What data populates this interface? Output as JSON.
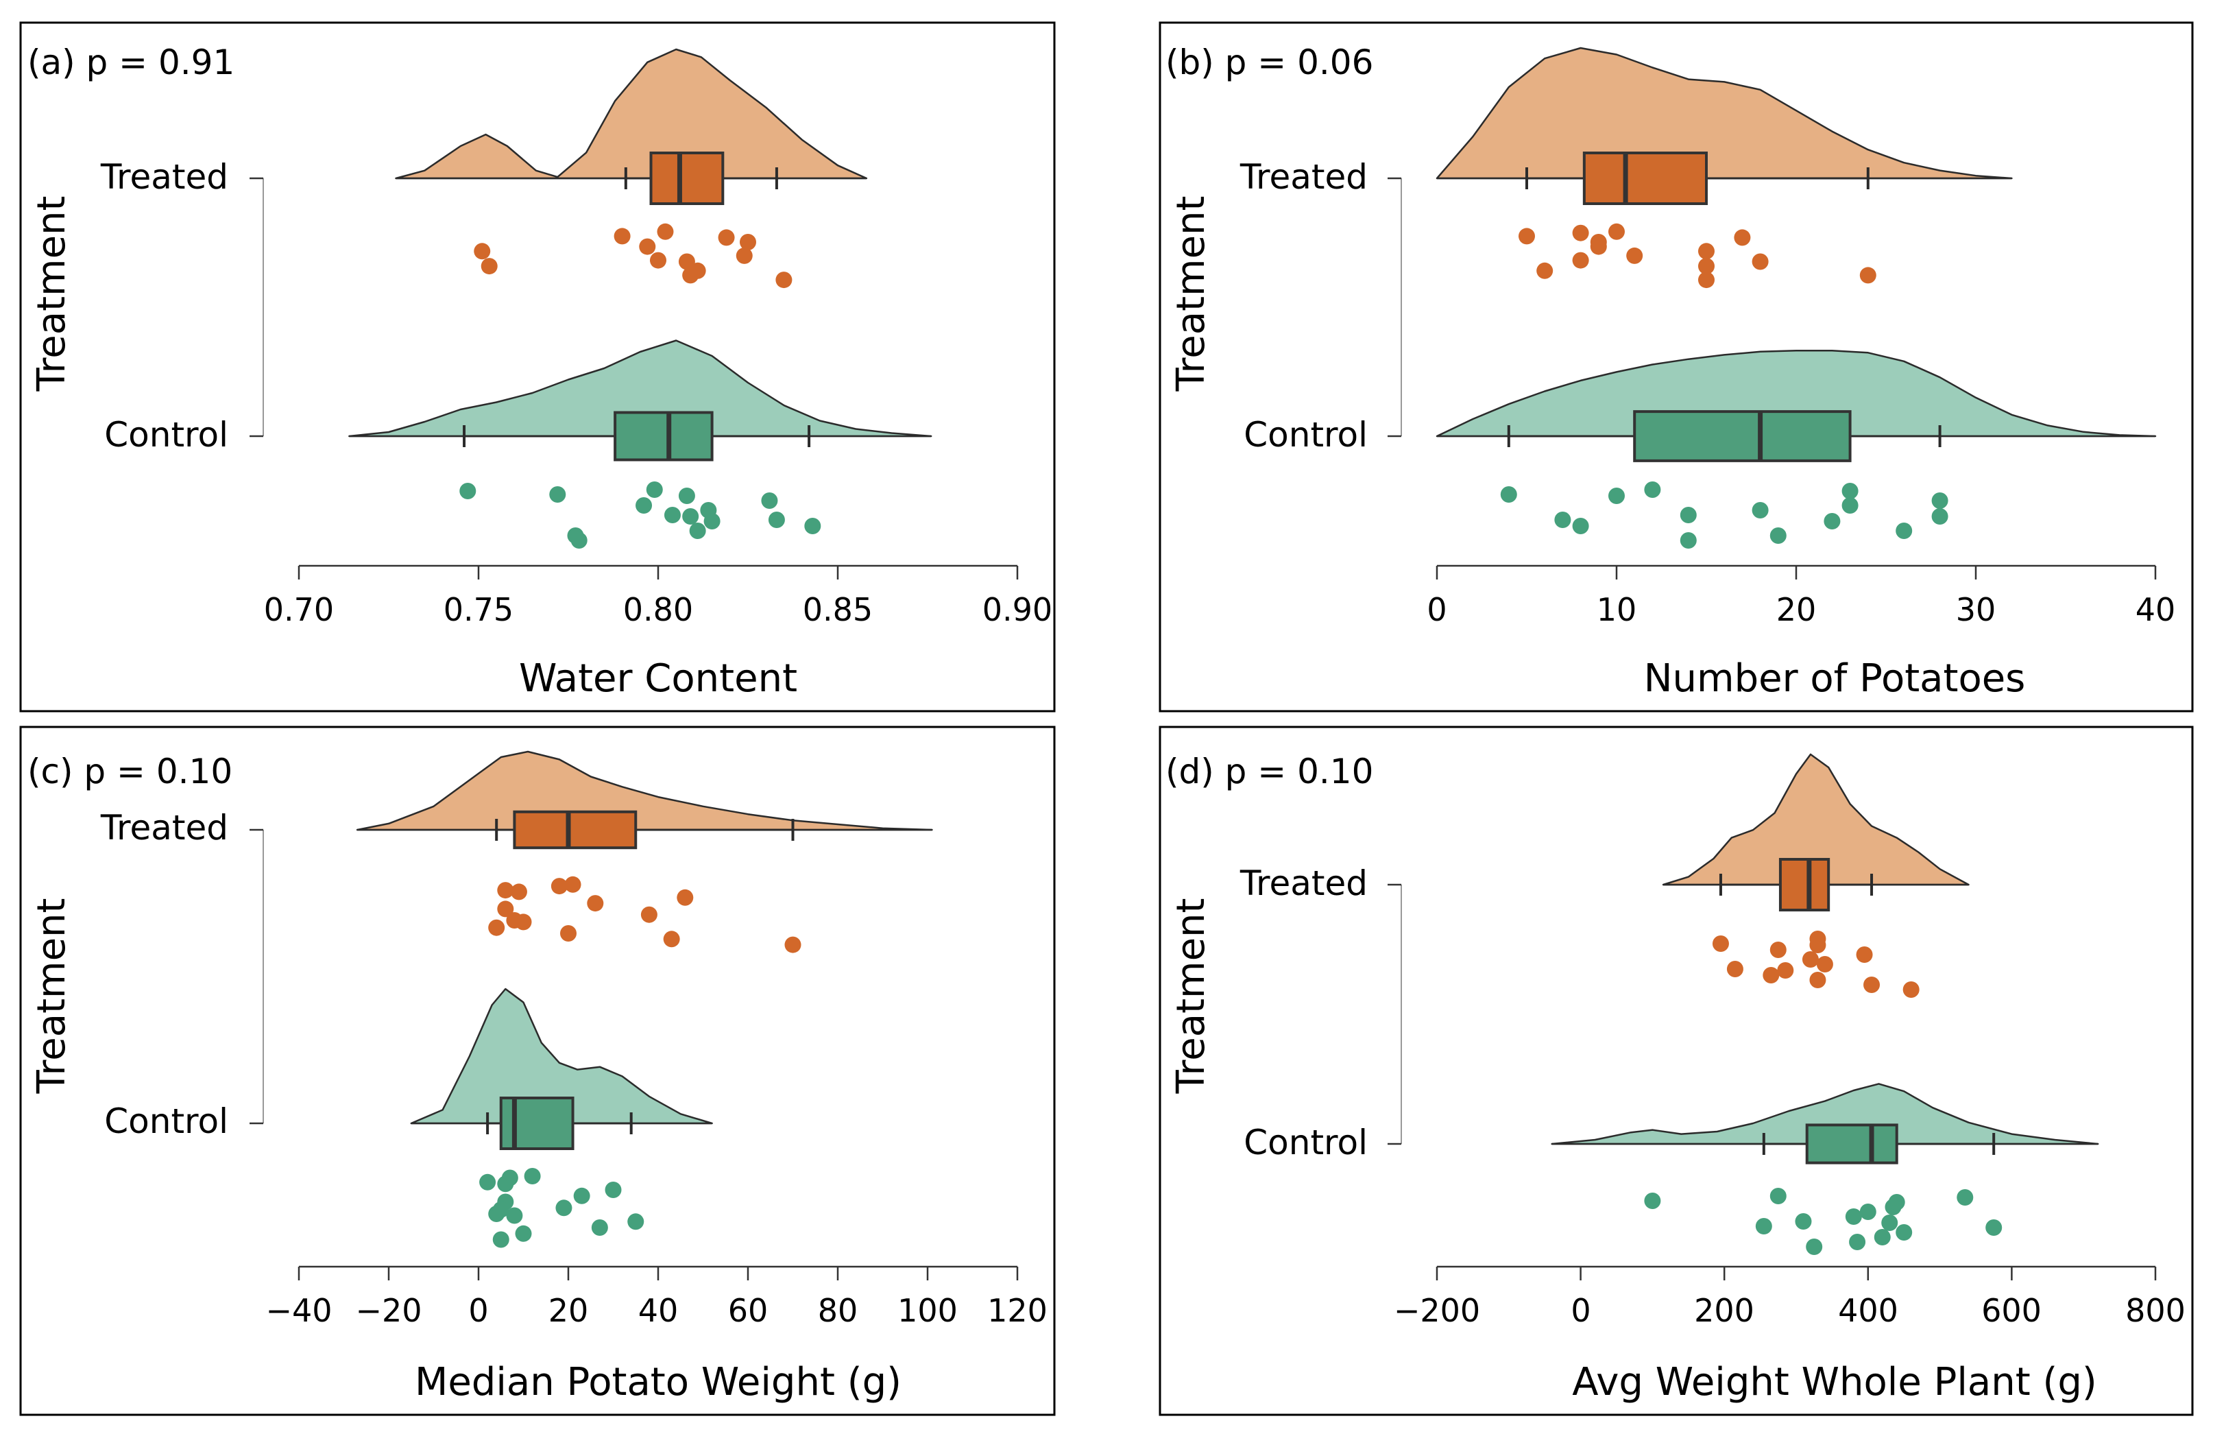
{
  "colors": {
    "treated_density": "#e6b084",
    "treated_box": "#cf6a2c",
    "treated_point": "#d2682a",
    "control_density": "#9ccdba",
    "control_box": "#4f9e7c",
    "control_point": "#45a07c",
    "outline": "#2b2b2b"
  },
  "chart_data": [
    {
      "type": "raincloud",
      "panel": "(a)",
      "title": "(a) p = 0.91",
      "xlabel": "Water Content",
      "ylabel": "Treatment",
      "xlim": [
        0.7,
        0.9
      ],
      "ticks": [
        0.7,
        0.75,
        0.8,
        0.85,
        0.9
      ],
      "tick_labels": [
        "0.70",
        "0.75",
        "0.80",
        "0.85",
        "0.90"
      ],
      "groups": [
        {
          "name": "Treated",
          "density": {
            "range": [
              0.727,
              0.858
            ],
            "points": [
              [
                0.727,
                0
              ],
              [
                0.735,
                0.06
              ],
              [
                0.745,
                0.25
              ],
              [
                0.752,
                0.34
              ],
              [
                0.758,
                0.25
              ],
              [
                0.766,
                0.06
              ],
              [
                0.772,
                0.01
              ],
              [
                0.78,
                0.2
              ],
              [
                0.788,
                0.6
              ],
              [
                0.797,
                0.9
              ],
              [
                0.805,
                1.0
              ],
              [
                0.812,
                0.94
              ],
              [
                0.82,
                0.76
              ],
              [
                0.83,
                0.55
              ],
              [
                0.84,
                0.3
              ],
              [
                0.85,
                0.1
              ],
              [
                0.858,
                0
              ]
            ]
          },
          "box": {
            "whisker_low": 0.791,
            "q1": 0.798,
            "median": 0.806,
            "q3": 0.818,
            "whisker_high": 0.833
          },
          "points": [
            0.79,
            0.8,
            0.802,
            0.824,
            0.835,
            0.751,
            0.809,
            0.797,
            0.811,
            0.825,
            0.753,
            0.819,
            0.808
          ]
        },
        {
          "name": "Control",
          "density": {
            "range": [
              0.714,
              0.876
            ],
            "points": [
              [
                0.714,
                0
              ],
              [
                0.725,
                0.04
              ],
              [
                0.735,
                0.14
              ],
              [
                0.745,
                0.26
              ],
              [
                0.755,
                0.33
              ],
              [
                0.765,
                0.42
              ],
              [
                0.775,
                0.55
              ],
              [
                0.785,
                0.66
              ],
              [
                0.795,
                0.82
              ],
              [
                0.805,
                0.93
              ],
              [
                0.815,
                0.78
              ],
              [
                0.825,
                0.52
              ],
              [
                0.835,
                0.3
              ],
              [
                0.845,
                0.15
              ],
              [
                0.855,
                0.07
              ],
              [
                0.865,
                0.03
              ],
              [
                0.876,
                0
              ]
            ]
          },
          "box": {
            "whisker_low": 0.746,
            "q1": 0.788,
            "median": 0.803,
            "q3": 0.815,
            "whisker_high": 0.842
          },
          "points": [
            0.772,
            0.833,
            0.799,
            0.804,
            0.778,
            0.814,
            0.777,
            0.796,
            0.811,
            0.831,
            0.843,
            0.808,
            0.815,
            0.747,
            0.809
          ]
        }
      ]
    },
    {
      "type": "raincloud",
      "panel": "(b)",
      "title": "(b) p = 0.06",
      "xlabel": "Number of Potatoes",
      "ylabel": "Treatment",
      "xlim": [
        0,
        40
      ],
      "ticks": [
        0,
        10,
        20,
        30,
        40
      ],
      "tick_labels": [
        "0",
        "10",
        "20",
        "30",
        "40"
      ],
      "groups": [
        {
          "name": "Treated",
          "density": {
            "range": [
              0,
              32
            ],
            "points": [
              [
                0,
                0
              ],
              [
                2,
                0.32
              ],
              [
                4,
                0.7
              ],
              [
                6,
                0.92
              ],
              [
                8,
                1.0
              ],
              [
                10,
                0.95
              ],
              [
                12,
                0.85
              ],
              [
                14,
                0.76
              ],
              [
                16,
                0.74
              ],
              [
                18,
                0.68
              ],
              [
                20,
                0.52
              ],
              [
                22,
                0.36
              ],
              [
                24,
                0.22
              ],
              [
                26,
                0.12
              ],
              [
                28,
                0.06
              ],
              [
                30,
                0.02
              ],
              [
                32,
                0
              ]
            ]
          },
          "box": {
            "whisker_low": 5,
            "q1": 8.2,
            "median": 10.5,
            "q3": 15,
            "whisker_high": 24
          },
          "points": [
            5,
            8,
            10,
            11,
            15,
            15,
            24,
            9,
            6,
            9,
            15,
            17,
            18,
            8
          ]
        },
        {
          "name": "Control",
          "density": {
            "range": [
              0,
              40
            ],
            "points": [
              [
                0,
                0
              ],
              [
                2,
                0.16
              ],
              [
                4,
                0.3
              ],
              [
                6,
                0.42
              ],
              [
                8,
                0.52
              ],
              [
                10,
                0.6
              ],
              [
                12,
                0.67
              ],
              [
                14,
                0.72
              ],
              [
                16,
                0.76
              ],
              [
                18,
                0.79
              ],
              [
                20,
                0.8
              ],
              [
                22,
                0.8
              ],
              [
                24,
                0.78
              ],
              [
                26,
                0.7
              ],
              [
                28,
                0.55
              ],
              [
                30,
                0.36
              ],
              [
                32,
                0.2
              ],
              [
                34,
                0.1
              ],
              [
                36,
                0.04
              ],
              [
                38,
                0.01
              ],
              [
                40,
                0
              ]
            ]
          },
          "box": {
            "whisker_low": 4,
            "q1": 11,
            "median": 18,
            "q3": 23,
            "whisker_high": 28
          },
          "points": [
            4,
            7,
            12,
            14,
            14,
            18,
            19,
            23,
            26,
            28,
            8,
            10,
            22,
            23,
            28
          ]
        }
      ]
    },
    {
      "type": "raincloud",
      "panel": "(c)",
      "title": "(c) p = 0.10",
      "xlabel": "Median Potato Weight (g)",
      "ylabel": "Treatment",
      "xlim": [
        -40,
        120
      ],
      "ticks": [
        -40,
        -20,
        0,
        20,
        40,
        60,
        80,
        100,
        120
      ],
      "tick_labels": [
        "−40",
        "−20",
        "0",
        "20",
        "40",
        "60",
        "80",
        "100",
        "120"
      ],
      "groups": [
        {
          "name": "Treated",
          "density": {
            "range": [
              -27,
              101
            ],
            "points": [
              [
                -27,
                0
              ],
              [
                -20,
                0.08
              ],
              [
                -10,
                0.3
              ],
              [
                0,
                0.72
              ],
              [
                5,
                0.93
              ],
              [
                11,
                1.0
              ],
              [
                18,
                0.9
              ],
              [
                25,
                0.68
              ],
              [
                32,
                0.55
              ],
              [
                40,
                0.42
              ],
              [
                50,
                0.3
              ],
              [
                60,
                0.2
              ],
              [
                70,
                0.12
              ],
              [
                80,
                0.07
              ],
              [
                90,
                0.02
              ],
              [
                101,
                0
              ]
            ]
          },
          "box": {
            "whisker_low": 4,
            "q1": 8,
            "median": 20,
            "q3": 35,
            "whisker_high": 70
          },
          "points": [
            6,
            8,
            21,
            38,
            70,
            6,
            43,
            26,
            20,
            46,
            4,
            9,
            10,
            18
          ]
        },
        {
          "name": "Control",
          "density": {
            "range": [
              -15,
              52
            ],
            "points": [
              [
                -15,
                0
              ],
              [
                -8,
                0.1
              ],
              [
                -2,
                0.5
              ],
              [
                3,
                0.88
              ],
              [
                6,
                1.0
              ],
              [
                10,
                0.9
              ],
              [
                14,
                0.6
              ],
              [
                18,
                0.45
              ],
              [
                22,
                0.4
              ],
              [
                27,
                0.42
              ],
              [
                32,
                0.35
              ],
              [
                38,
                0.2
              ],
              [
                45,
                0.07
              ],
              [
                52,
                0
              ]
            ]
          },
          "box": {
            "whisker_low": 2,
            "q1": 5,
            "median": 8,
            "q3": 21,
            "whisker_high": 34
          },
          "points": [
            2,
            4,
            12,
            19,
            5,
            6,
            10,
            23,
            27,
            30,
            35,
            6,
            8,
            7,
            5
          ]
        }
      ]
    },
    {
      "type": "raincloud",
      "panel": "(d)",
      "title": "(d) p = 0.10",
      "xlabel": "Avg Weight Whole Plant (g)",
      "ylabel": "Treatment",
      "xlim": [
        -200,
        800
      ],
      "ticks": [
        -200,
        0,
        200,
        400,
        600,
        800
      ],
      "tick_labels": [
        "−200",
        "0",
        "200",
        "400",
        "600",
        "800"
      ],
      "groups": [
        {
          "name": "Treated",
          "density": {
            "range": [
              115,
              540
            ],
            "points": [
              [
                115,
                0
              ],
              [
                150,
                0.06
              ],
              [
                185,
                0.2
              ],
              [
                210,
                0.36
              ],
              [
                240,
                0.42
              ],
              [
                270,
                0.55
              ],
              [
                300,
                0.85
              ],
              [
                320,
                1.0
              ],
              [
                345,
                0.9
              ],
              [
                375,
                0.62
              ],
              [
                405,
                0.45
              ],
              [
                440,
                0.36
              ],
              [
                470,
                0.25
              ],
              [
                500,
                0.12
              ],
              [
                540,
                0
              ]
            ]
          },
          "box": {
            "whisker_low": 195,
            "q1": 278,
            "median": 318,
            "q3": 345,
            "whisker_high": 405
          },
          "points": [
            195,
            215,
            330,
            340,
            460,
            320,
            405,
            395,
            330,
            275,
            265,
            330,
            285
          ]
        },
        {
          "name": "Control",
          "density": {
            "range": [
              -40,
              720
            ],
            "points": [
              [
                -40,
                0
              ],
              [
                20,
                0.05
              ],
              [
                70,
                0.14
              ],
              [
                100,
                0.17
              ],
              [
                140,
                0.12
              ],
              [
                190,
                0.15
              ],
              [
                240,
                0.25
              ],
              [
                290,
                0.4
              ],
              [
                340,
                0.52
              ],
              [
                380,
                0.65
              ],
              [
                415,
                0.73
              ],
              [
                450,
                0.64
              ],
              [
                490,
                0.44
              ],
              [
                540,
                0.26
              ],
              [
                600,
                0.12
              ],
              [
                660,
                0.05
              ],
              [
                720,
                0
              ]
            ]
          },
          "box": {
            "whisker_low": 255,
            "q1": 315,
            "median": 405,
            "q3": 440,
            "whisker_high": 575
          },
          "points": [
            100,
            255,
            275,
            310,
            325,
            380,
            385,
            400,
            420,
            435,
            450,
            440,
            575,
            535,
            430
          ]
        }
      ]
    }
  ]
}
